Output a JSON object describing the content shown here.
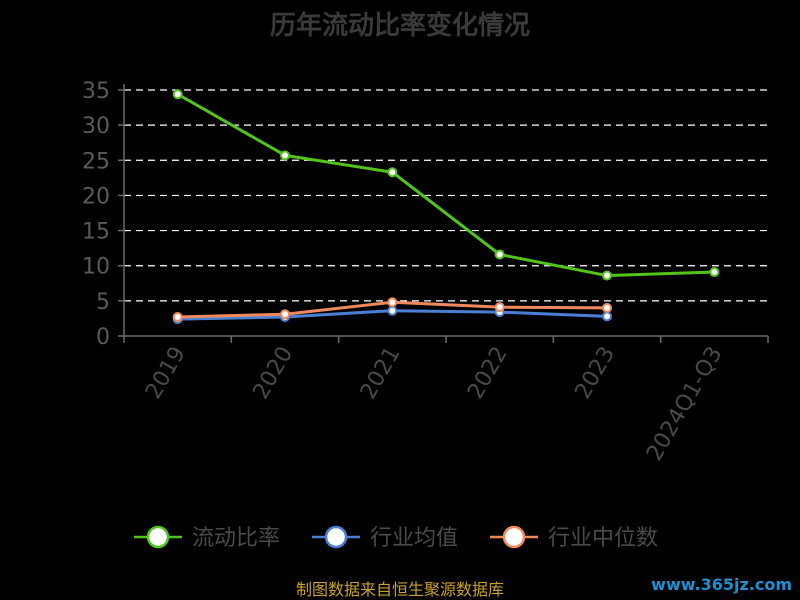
{
  "chart_data": {
    "type": "line",
    "title": "历年流动比率变化情况",
    "categories": [
      "2019",
      "2020",
      "2021",
      "2022",
      "2023",
      "2024Q1-Q3"
    ],
    "ylim": [
      0,
      35
    ],
    "yticks": [
      0,
      5,
      10,
      15,
      20,
      25,
      30,
      35
    ],
    "grid": true,
    "legend_position": "bottom",
    "series": [
      {
        "name": "流动比率",
        "color": "#52c41a",
        "values": [
          34.4,
          25.7,
          23.3,
          11.6,
          8.6,
          9.1
        ]
      },
      {
        "name": "行业均值",
        "color": "#4a7fd4",
        "values": [
          2.4,
          2.7,
          3.6,
          3.4,
          2.8,
          null
        ]
      },
      {
        "name": "行业中位数",
        "color": "#f08a5d",
        "values": [
          2.7,
          3.1,
          4.8,
          4.1,
          4.0,
          null
        ]
      }
    ]
  },
  "footer": {
    "source": "制图数据来自恒生聚源数据库",
    "watermark": "www.365jz.com"
  }
}
